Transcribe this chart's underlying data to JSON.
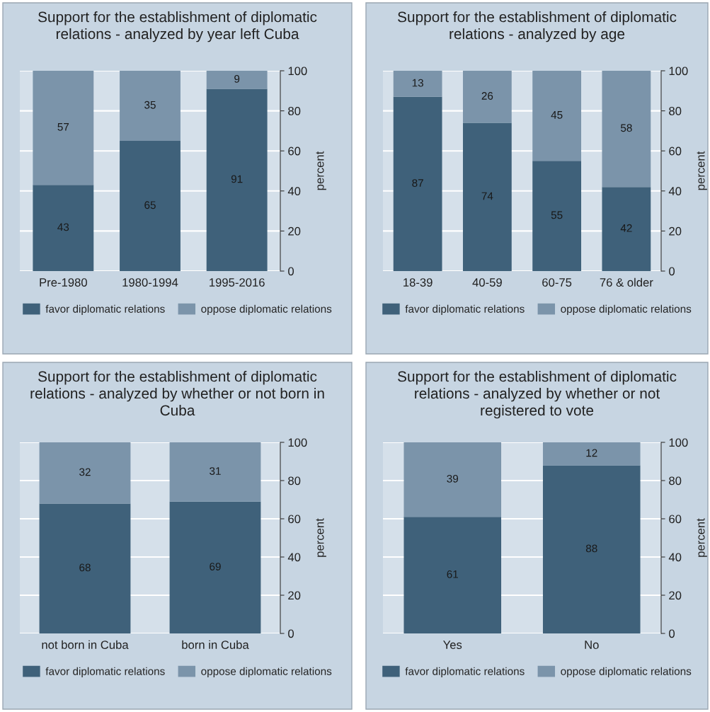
{
  "chart_data": [
    {
      "type": "bar",
      "stacked": true,
      "title": "Support for the establishment of diplomatic\nrelations - analyzed by year left Cuba",
      "ylabel": "percent",
      "categories": [
        "Pre-1980",
        "1980-1994",
        "1995-2016"
      ],
      "series": [
        {
          "name": "favor diplomatic relations",
          "color": "#3f617a",
          "values": [
            43,
            65,
            91
          ]
        },
        {
          "name": "oppose diplomatic relations",
          "color": "#7b94aa",
          "values": [
            57,
            35,
            9
          ]
        }
      ],
      "ylim": [
        0,
        100
      ],
      "yticks": [
        0,
        20,
        40,
        60,
        80,
        100
      ],
      "grid": "y",
      "legend": "bottom",
      "data_labels": true
    },
    {
      "type": "bar",
      "stacked": true,
      "title": "Support for the establishment of diplomatic\nrelations - analyzed by age",
      "ylabel": "percent",
      "categories": [
        "18-39",
        "40-59",
        "60-75",
        "76 & older"
      ],
      "series": [
        {
          "name": "favor diplomatic relations",
          "color": "#3f617a",
          "values": [
            87,
            74,
            55,
            42
          ]
        },
        {
          "name": "oppose diplomatic relations",
          "color": "#7b94aa",
          "values": [
            13,
            26,
            45,
            58
          ]
        }
      ],
      "ylim": [
        0,
        100
      ],
      "yticks": [
        0,
        20,
        40,
        60,
        80,
        100
      ],
      "grid": "y",
      "legend": "bottom",
      "data_labels": true
    },
    {
      "type": "bar",
      "stacked": true,
      "title": "Support for the establishment of diplomatic\nrelations - analyzed by whether or not born in\nCuba",
      "ylabel": "percent",
      "categories": [
        "not born in Cuba",
        "born in Cuba"
      ],
      "series": [
        {
          "name": "favor diplomatic relations",
          "color": "#3f617a",
          "values": [
            68,
            69
          ]
        },
        {
          "name": "oppose diplomatic relations",
          "color": "#7b94aa",
          "values": [
            32,
            31
          ]
        }
      ],
      "ylim": [
        0,
        100
      ],
      "yticks": [
        0,
        20,
        40,
        60,
        80,
        100
      ],
      "grid": "y",
      "legend": "bottom",
      "data_labels": true
    },
    {
      "type": "bar",
      "stacked": true,
      "title": "Support for the establishment of diplomatic\nrelations - analyzed by whether or not\nregistered to vote",
      "ylabel": "percent",
      "categories": [
        "Yes",
        "No"
      ],
      "series": [
        {
          "name": "favor diplomatic relations",
          "color": "#3f617a",
          "values": [
            61,
            88
          ]
        },
        {
          "name": "oppose diplomatic relations",
          "color": "#7b94aa",
          "values": [
            39,
            12
          ]
        }
      ],
      "ylim": [
        0,
        100
      ],
      "yticks": [
        0,
        20,
        40,
        60,
        80,
        100
      ],
      "grid": "y",
      "legend": "bottom",
      "data_labels": true
    }
  ]
}
